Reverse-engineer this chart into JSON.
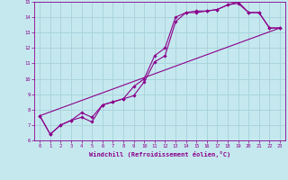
{
  "xlabel": "Windchill (Refroidissement éolien,°C)",
  "ylabel": "",
  "xlim": [
    -0.5,
    23.5
  ],
  "ylim": [
    6,
    15
  ],
  "yticks": [
    6,
    7,
    8,
    9,
    10,
    11,
    12,
    13,
    14,
    15
  ],
  "xticks": [
    0,
    1,
    2,
    3,
    4,
    5,
    6,
    7,
    8,
    9,
    10,
    11,
    12,
    13,
    14,
    15,
    16,
    17,
    18,
    19,
    20,
    21,
    22,
    23
  ],
  "background_color": "#c5e8ef",
  "grid_color": "#aad4dc",
  "line_color": "#8b008b",
  "marker_color": "#8b008b",
  "line1_x": [
    0,
    1,
    2,
    3,
    4,
    5,
    6,
    7,
    8,
    9,
    10,
    11,
    12,
    13,
    14,
    15,
    16,
    17,
    18,
    19,
    20,
    21,
    22,
    23
  ],
  "line1_y": [
    7.6,
    6.4,
    7.0,
    7.3,
    7.5,
    7.2,
    8.3,
    8.5,
    8.7,
    8.9,
    9.8,
    11.1,
    11.5,
    13.7,
    14.3,
    14.3,
    14.4,
    14.5,
    14.8,
    14.9,
    14.3,
    14.3,
    13.3,
    13.3
  ],
  "line2_x": [
    0,
    1,
    2,
    3,
    4,
    5,
    6,
    7,
    8,
    9,
    10,
    11,
    12,
    13,
    14,
    15,
    16,
    17,
    18,
    19,
    20,
    21,
    22,
    23
  ],
  "line2_y": [
    7.6,
    6.4,
    7.0,
    7.3,
    7.8,
    7.5,
    8.3,
    8.5,
    8.7,
    9.5,
    10.0,
    11.5,
    12.0,
    14.0,
    14.3,
    14.4,
    14.4,
    14.5,
    14.8,
    15.0,
    14.3,
    14.3,
    13.3,
    13.3
  ],
  "line3_x": [
    0,
    23
  ],
  "line3_y": [
    7.6,
    13.3
  ]
}
